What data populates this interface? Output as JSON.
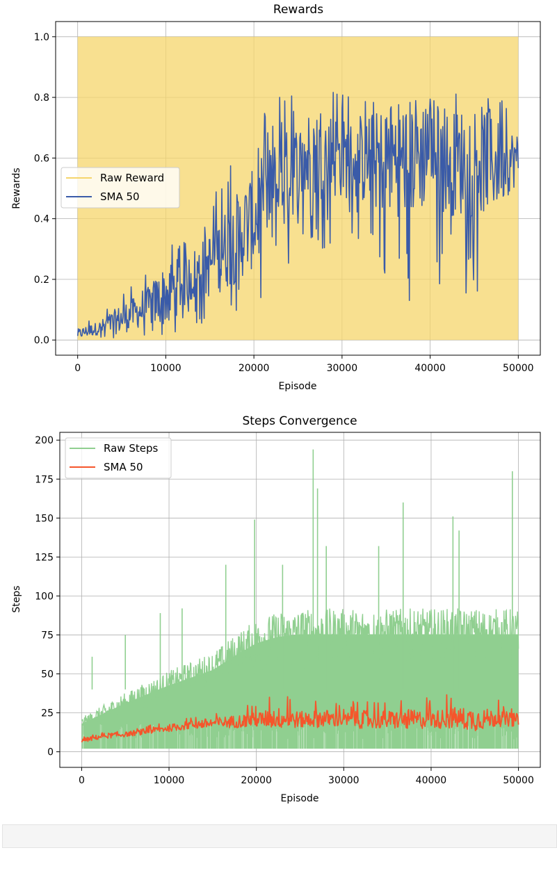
{
  "chart_data": [
    {
      "type": "line",
      "title": "Rewards",
      "xlabel": "Episode",
      "ylabel": "Rewards",
      "xlim": [
        -2500,
        52500
      ],
      "ylim": [
        -0.05,
        1.05
      ],
      "xticks": [
        "0",
        "10000",
        "20000",
        "30000",
        "40000",
        "50000"
      ],
      "yticks": [
        "0.0",
        "0.2",
        "0.4",
        "0.6",
        "0.8",
        "1.0"
      ],
      "grid": true,
      "legend_position": "center-left",
      "series": [
        {
          "name": "Raw Reward",
          "color": "#f5d56b",
          "style": "dense line between 0 and 1 (filled band)",
          "x": [
            0,
            50000
          ],
          "min": [
            0,
            0
          ],
          "max": [
            1,
            1
          ]
        },
        {
          "name": "SMA 50",
          "color": "#3a5ba8",
          "x": [
            0,
            2500,
            5000,
            7500,
            10000,
            12500,
            15000,
            17500,
            20000,
            22500,
            25000,
            27500,
            30000,
            32500,
            35000,
            37500,
            40000,
            42500,
            45000,
            47500,
            50000
          ],
          "mean": [
            0.02,
            0.04,
            0.07,
            0.1,
            0.15,
            0.2,
            0.25,
            0.32,
            0.4,
            0.48,
            0.58,
            0.62,
            0.6,
            0.58,
            0.6,
            0.6,
            0.62,
            0.58,
            0.6,
            0.58,
            0.6
          ],
          "min": [
            0.0,
            0.0,
            0.0,
            0.0,
            0.0,
            0.04,
            0.06,
            0.08,
            0.1,
            0.1,
            0.34,
            0.28,
            0.36,
            0.32,
            0.1,
            0.1,
            0.14,
            0.22,
            0.1,
            0.3,
            0.4
          ],
          "max": [
            0.06,
            0.08,
            0.18,
            0.2,
            0.38,
            0.34,
            0.46,
            0.6,
            0.7,
            0.8,
            0.84,
            0.88,
            0.84,
            0.8,
            0.78,
            0.82,
            0.8,
            0.84,
            0.82,
            0.84,
            0.7
          ]
        }
      ]
    },
    {
      "type": "line",
      "title": "Steps Convergence",
      "xlabel": "Episode",
      "ylabel": "Steps",
      "xlim": [
        -2500,
        52500
      ],
      "ylim": [
        -10,
        205
      ],
      "xticks": [
        "0",
        "10000",
        "20000",
        "30000",
        "40000",
        "50000"
      ],
      "yticks": [
        "0",
        "25",
        "50",
        "75",
        "100",
        "125",
        "150",
        "175",
        "200"
      ],
      "grid": true,
      "legend_position": "top-left",
      "series": [
        {
          "name": "Raw Steps",
          "color": "#90cf90",
          "x": [
            0,
            2500,
            5000,
            7500,
            10000,
            12500,
            15000,
            17500,
            20000,
            22500,
            25000,
            27500,
            30000,
            32500,
            35000,
            37500,
            40000,
            42500,
            45000,
            47500,
            50000
          ],
          "min": [
            2,
            2,
            2,
            2,
            2,
            2,
            2,
            2,
            2,
            2,
            2,
            2,
            2,
            2,
            2,
            2,
            2,
            2,
            2,
            2,
            2
          ],
          "typical_max": [
            22,
            30,
            38,
            45,
            52,
            58,
            64,
            75,
            85,
            90,
            92,
            92,
            92,
            92,
            92,
            92,
            92,
            92,
            92,
            92,
            92
          ],
          "spikes": [
            [
              1200,
              61
            ],
            [
              5000,
              75
            ],
            [
              9000,
              89
            ],
            [
              11500,
              92
            ],
            [
              16500,
              120
            ],
            [
              19800,
              149
            ],
            [
              23000,
              120
            ],
            [
              26500,
              194
            ],
            [
              27000,
              169
            ],
            [
              28000,
              132
            ],
            [
              34000,
              132
            ],
            [
              36800,
              160
            ],
            [
              42500,
              151
            ],
            [
              43200,
              142
            ],
            [
              49300,
              180
            ]
          ]
        },
        {
          "name": "SMA 50",
          "color": "#f5552b",
          "x": [
            0,
            2500,
            5000,
            7500,
            10000,
            12500,
            15000,
            17500,
            20000,
            22500,
            25000,
            27500,
            30000,
            32500,
            35000,
            37500,
            40000,
            42500,
            45000,
            47500,
            50000
          ],
          "mean": [
            7,
            10,
            11,
            13,
            15,
            17,
            18,
            19,
            20,
            21,
            20,
            21,
            20,
            20,
            20,
            20,
            20,
            21,
            20,
            21,
            20
          ],
          "min": [
            5,
            6,
            8,
            9,
            11,
            11,
            12,
            12,
            13,
            13,
            13,
            12,
            12,
            12,
            12,
            12,
            12,
            12,
            12,
            12,
            12
          ],
          "max": [
            10,
            13,
            14,
            17,
            20,
            22,
            26,
            28,
            32,
            40,
            34,
            36,
            30,
            36,
            35,
            38,
            34,
            40,
            42,
            34,
            28
          ]
        }
      ]
    }
  ]
}
